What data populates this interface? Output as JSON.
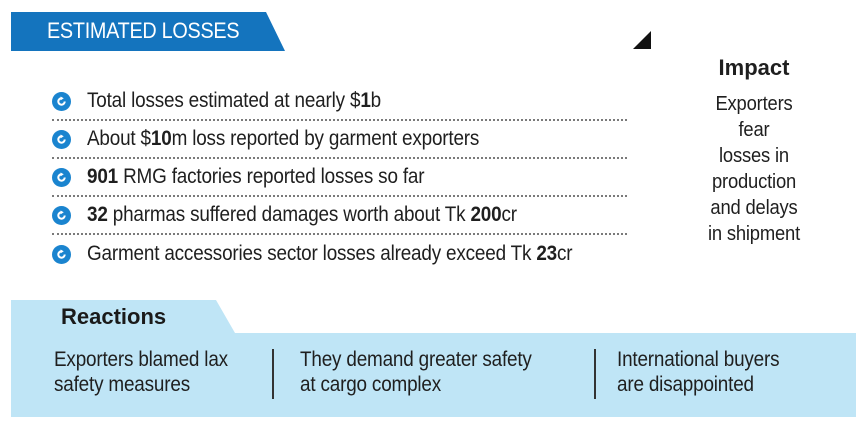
{
  "header": {
    "title": "ESTIMATED LOSSES"
  },
  "losses": [
    {
      "before": "Total losses estimated at nearly $",
      "bold": "1",
      "after": "b"
    },
    {
      "before": "About $",
      "bold": "10",
      "after": "m loss reported by garment exporters"
    },
    {
      "bold": "901",
      "after": " RMG factories reported losses so far"
    },
    {
      "bold": "32",
      "after": " pharmas suffered damages worth about Tk ",
      "bold2": "200",
      "after2": "cr"
    },
    {
      "before": "Garment accessories sector losses already exceed Tk ",
      "bold": "23",
      "after": "cr"
    }
  ],
  "impact": {
    "title": "Impact",
    "lines": [
      "Exporters",
      "fear",
      "losses in",
      "production",
      "and delays",
      "in shipment"
    ]
  },
  "reactions": {
    "title": "Reactions",
    "items": [
      {
        "line1": "Exporters blamed lax",
        "line2": "safety measures"
      },
      {
        "line1": "They demand greater safety",
        "line2": "at cargo complex"
      },
      {
        "line1": "International buyers",
        "line2": "are disappointed"
      }
    ]
  },
  "colors": {
    "accent": "#1474be",
    "bullet": "#1a84cf",
    "panel": "#bfe5f6"
  },
  "icons": {
    "bullet": "circular-arrow-icon",
    "corner": "triangle-corner-icon"
  }
}
